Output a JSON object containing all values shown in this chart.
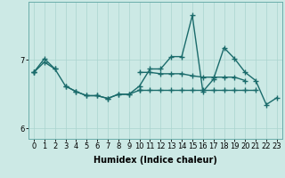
{
  "xlabel": "Humidex (Indice chaleur)",
  "x": [
    0,
    1,
    2,
    3,
    4,
    5,
    6,
    7,
    8,
    9,
    10,
    11,
    12,
    13,
    14,
    15,
    16,
    17,
    18,
    19,
    20,
    21,
    22,
    23
  ],
  "line1_y": [
    6.82,
    6.97,
    6.87,
    null,
    null,
    null,
    null,
    null,
    null,
    null,
    6.82,
    6.82,
    6.8,
    6.8,
    6.8,
    6.77,
    6.75,
    6.75,
    6.75,
    6.75,
    6.7,
    null,
    null,
    null
  ],
  "line2_y": [
    6.82,
    7.02,
    6.87,
    6.62,
    6.54,
    6.48,
    6.48,
    6.44,
    6.5,
    6.5,
    6.62,
    6.87,
    6.87,
    7.05,
    7.05,
    7.65,
    6.54,
    6.72,
    7.18,
    7.02,
    6.82,
    6.7,
    6.35,
    6.45
  ],
  "line3_y": [
    6.82,
    null,
    null,
    6.62,
    6.54,
    6.48,
    6.48,
    6.44,
    6.5,
    6.5,
    6.56,
    null,
    null,
    null,
    null,
    null,
    null,
    null,
    null,
    null,
    null,
    null,
    null,
    null
  ],
  "line4_y": [
    null,
    null,
    null,
    null,
    null,
    null,
    null,
    null,
    null,
    null,
    6.56,
    6.56,
    6.56,
    6.56,
    6.56,
    6.56,
    6.56,
    6.56,
    6.56,
    6.56,
    6.56,
    6.56,
    null,
    null
  ],
  "ylim": [
    5.85,
    7.85
  ],
  "yticks": [
    6,
    7
  ],
  "xlim": [
    -0.5,
    23.5
  ],
  "bg_color": "#cce9e5",
  "line_color": "#1a6b6b",
  "grid_color": "#aad4cf",
  "markersize": 4,
  "linewidth": 1.0,
  "xlabel_fontsize": 7,
  "tick_fontsize": 6
}
